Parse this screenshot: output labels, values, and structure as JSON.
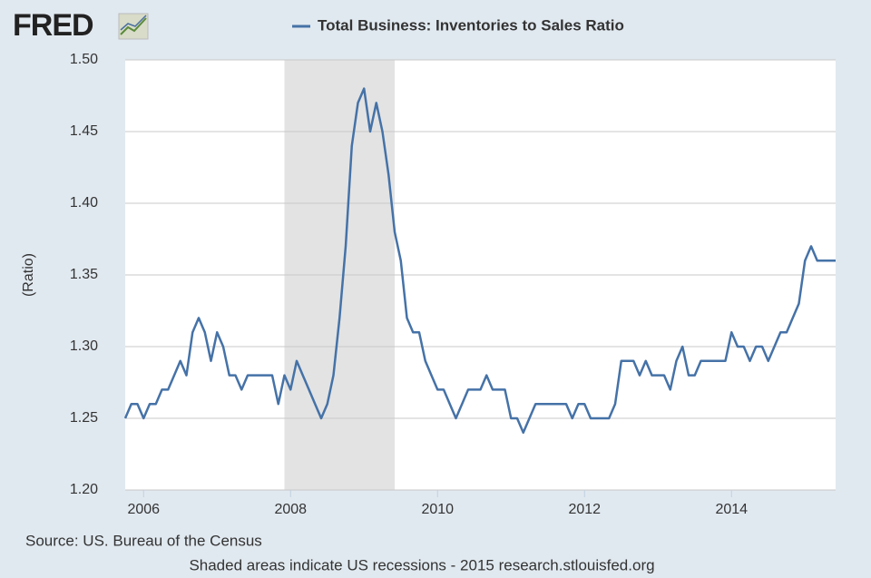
{
  "chart_data": {
    "type": "line",
    "logo": "FRED",
    "ylabel": "(Ratio)",
    "source": "Source: US. Bureau of the Census",
    "footer": "Shaded areas indicate US recessions - 2015 research.stlouisfed.org",
    "recessions": [
      {
        "start": "2007-12",
        "end": "2009-06",
        "color": "#e3e3e3"
      }
    ],
    "xlim": [
      "2005-10",
      "2015-06"
    ],
    "xticks": [
      2006,
      2008,
      2010,
      2012,
      2014
    ],
    "ylim": [
      1.2,
      1.5
    ],
    "yticks": [
      {
        "value": 1.2,
        "label": "1.20"
      },
      {
        "value": 1.25,
        "label": "1.25"
      },
      {
        "value": 1.3,
        "label": "1.30"
      },
      {
        "value": 1.35,
        "label": "1.35"
      },
      {
        "value": 1.4,
        "label": "1.40"
      },
      {
        "value": 1.45,
        "label": "1.45"
      },
      {
        "value": 1.5,
        "label": "1.50"
      }
    ],
    "grid": true,
    "x": [
      "2005-10",
      "2005-11",
      "2005-12",
      "2006-01",
      "2006-02",
      "2006-03",
      "2006-04",
      "2006-05",
      "2006-06",
      "2006-07",
      "2006-08",
      "2006-09",
      "2006-10",
      "2006-11",
      "2006-12",
      "2007-01",
      "2007-02",
      "2007-03",
      "2007-04",
      "2007-05",
      "2007-06",
      "2007-07",
      "2007-08",
      "2007-09",
      "2007-10",
      "2007-11",
      "2007-12",
      "2008-01",
      "2008-02",
      "2008-03",
      "2008-04",
      "2008-05",
      "2008-06",
      "2008-07",
      "2008-08",
      "2008-09",
      "2008-10",
      "2008-11",
      "2008-12",
      "2009-01",
      "2009-02",
      "2009-03",
      "2009-04",
      "2009-05",
      "2009-06",
      "2009-07",
      "2009-08",
      "2009-09",
      "2009-10",
      "2009-11",
      "2009-12",
      "2010-01",
      "2010-02",
      "2010-03",
      "2010-04",
      "2010-05",
      "2010-06",
      "2010-07",
      "2010-08",
      "2010-09",
      "2010-10",
      "2010-11",
      "2010-12",
      "2011-01",
      "2011-02",
      "2011-03",
      "2011-04",
      "2011-05",
      "2011-06",
      "2011-07",
      "2011-08",
      "2011-09",
      "2011-10",
      "2011-11",
      "2011-12",
      "2012-01",
      "2012-02",
      "2012-03",
      "2012-04",
      "2012-05",
      "2012-06",
      "2012-07",
      "2012-08",
      "2012-09",
      "2012-10",
      "2012-11",
      "2012-12",
      "2013-01",
      "2013-02",
      "2013-03",
      "2013-04",
      "2013-05",
      "2013-06",
      "2013-07",
      "2013-08",
      "2013-09",
      "2013-10",
      "2013-11",
      "2013-12",
      "2014-01",
      "2014-02",
      "2014-03",
      "2014-04",
      "2014-05",
      "2014-06",
      "2014-07",
      "2014-08",
      "2014-09",
      "2014-10",
      "2014-11",
      "2014-12",
      "2015-01",
      "2015-02",
      "2015-03",
      "2015-04",
      "2015-05",
      "2015-06"
    ],
    "series": [
      {
        "name": "Total Business: Inventories to Sales Ratio",
        "color": "#4572a7",
        "values": [
          1.25,
          1.26,
          1.26,
          1.25,
          1.26,
          1.26,
          1.27,
          1.27,
          1.28,
          1.29,
          1.28,
          1.31,
          1.32,
          1.31,
          1.29,
          1.31,
          1.3,
          1.28,
          1.28,
          1.27,
          1.28,
          1.28,
          1.28,
          1.28,
          1.28,
          1.26,
          1.28,
          1.27,
          1.29,
          1.28,
          1.27,
          1.26,
          1.25,
          1.26,
          1.28,
          1.32,
          1.37,
          1.44,
          1.47,
          1.48,
          1.45,
          1.47,
          1.45,
          1.42,
          1.38,
          1.36,
          1.32,
          1.31,
          1.31,
          1.29,
          1.28,
          1.27,
          1.27,
          1.26,
          1.25,
          1.26,
          1.27,
          1.27,
          1.27,
          1.28,
          1.27,
          1.27,
          1.27,
          1.25,
          1.25,
          1.24,
          1.25,
          1.26,
          1.26,
          1.26,
          1.26,
          1.26,
          1.26,
          1.25,
          1.26,
          1.26,
          1.25,
          1.25,
          1.25,
          1.25,
          1.26,
          1.29,
          1.29,
          1.29,
          1.28,
          1.29,
          1.28,
          1.28,
          1.28,
          1.27,
          1.29,
          1.3,
          1.28,
          1.28,
          1.29,
          1.29,
          1.29,
          1.29,
          1.29,
          1.31,
          1.3,
          1.3,
          1.29,
          1.3,
          1.3,
          1.29,
          1.3,
          1.31,
          1.31,
          1.32,
          1.33,
          1.36,
          1.37,
          1.36,
          1.36,
          1.36,
          1.36
        ]
      }
    ]
  }
}
